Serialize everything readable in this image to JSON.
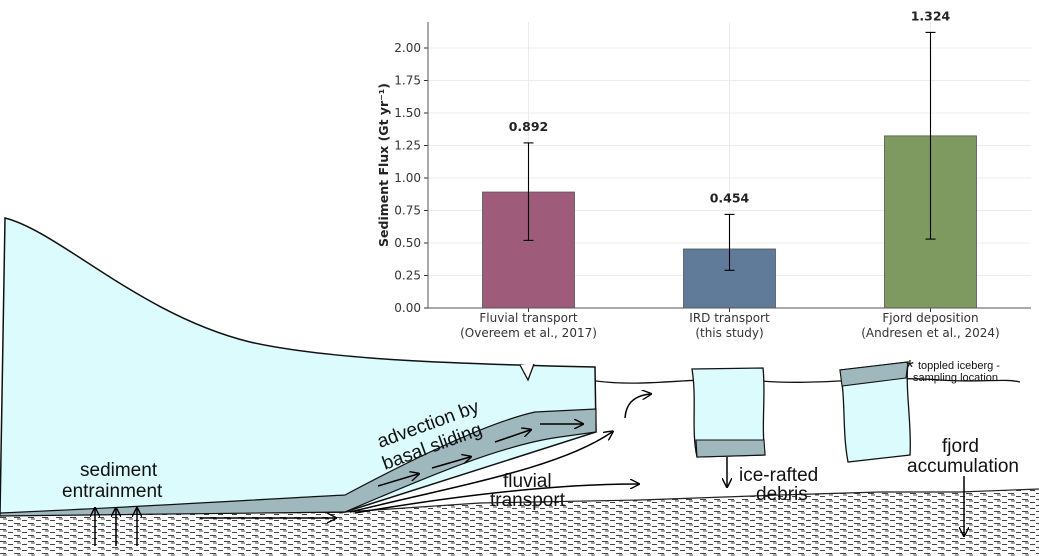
{
  "chart_data": {
    "type": "bar",
    "ylabel": "Sediment Flux (Gt yr⁻¹)",
    "ylim": [
      0,
      2.2
    ],
    "yticks": [
      "0.00",
      "0.25",
      "0.50",
      "0.75",
      "1.00",
      "1.25",
      "1.50",
      "1.75",
      "2.00"
    ],
    "grid": true,
    "categories": [
      {
        "line1": "Fluvial transport",
        "line2": "(Overeem et al., 2017)"
      },
      {
        "line1": "IRD transport",
        "line2": "(this study)"
      },
      {
        "line1": "Fjord deposition",
        "line2": "(Andresen et al., 2024)"
      }
    ],
    "values": [
      0.892,
      0.454,
      1.324
    ],
    "value_labels": [
      "0.892",
      "0.454",
      "1.324"
    ],
    "error_low": [
      0.52,
      0.29,
      0.53
    ],
    "error_high": [
      1.27,
      0.72,
      2.12
    ],
    "colors": [
      "#9e5b7a",
      "#5f7b99",
      "#7f9a61"
    ]
  },
  "diagram": {
    "labels": {
      "sediment_line1": "sediment",
      "sediment_line2": "entrainment",
      "advection_line1": "advection by",
      "advection_line2": "basal sliding",
      "fluvial_line1": "fluvial",
      "fluvial_line2": "transport",
      "ird_line1": "ice-rafted",
      "ird_line2": "debris",
      "fjord_line1": "fjord",
      "fjord_line2": "accumulation"
    },
    "note": {
      "star": "*",
      "line1": "toppled iceberg -",
      "line2": "sampling location"
    },
    "colors": {
      "ice": "#dcfbfd",
      "debris": "#9fb8bd",
      "sediment": "#555555"
    }
  }
}
